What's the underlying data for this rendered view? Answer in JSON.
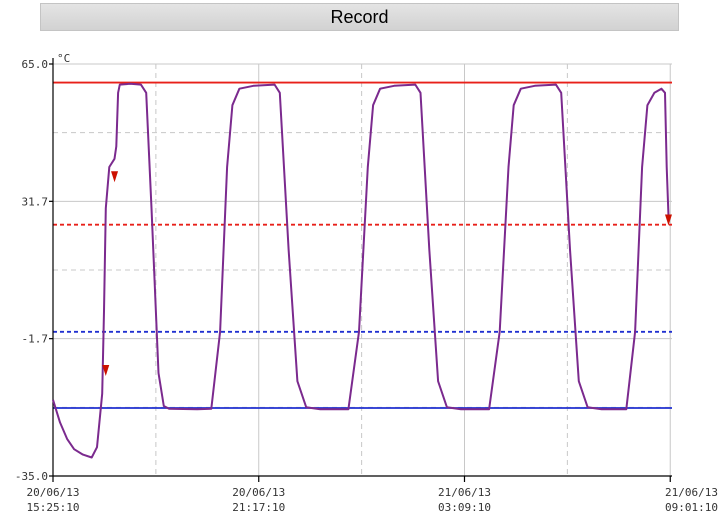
{
  "header": {
    "title": "Record"
  },
  "chart_data": {
    "type": "line",
    "title": "Record",
    "unit": "°C",
    "ylim": [
      -35.0,
      65.0
    ],
    "y_ticks": [
      "65.0",
      "31.7",
      "-1.7",
      "-35.0"
    ],
    "x_ticks": [
      {
        "date": "20/06/13",
        "time": "15:25:10"
      },
      {
        "date": "20/06/13",
        "time": "21:17:10"
      },
      {
        "date": "21/06/13",
        "time": "03:09:10"
      },
      {
        "date": "21/06/13",
        "time": "09:01:10"
      }
    ],
    "xlim_hours": [
      0,
      17.6
    ],
    "grid": true,
    "thresholds": [
      {
        "name": "high-alarm",
        "value": 60.5,
        "style": "solid",
        "color": "#e8201a"
      },
      {
        "name": "high-warning",
        "value": 26.0,
        "style": "dashed",
        "color": "#e8201a"
      },
      {
        "name": "low-warning",
        "value": 0.0,
        "style": "dashed",
        "color": "#2030d0"
      },
      {
        "name": "low-alarm",
        "value": -18.5,
        "style": "solid",
        "color": "#2030d0"
      }
    ],
    "series": [
      {
        "color": "#7b2a8e",
        "points": [
          [
            0.0,
            -16.5
          ],
          [
            0.2,
            -22.0
          ],
          [
            0.4,
            -26.0
          ],
          [
            0.6,
            -28.5
          ],
          [
            0.85,
            -29.8
          ],
          [
            1.1,
            -30.5
          ],
          [
            1.25,
            -28.0
          ],
          [
            1.4,
            -15.0
          ],
          [
            1.45,
            5.0
          ],
          [
            1.5,
            30.0
          ],
          [
            1.6,
            40.0
          ],
          [
            1.75,
            42.0
          ],
          [
            1.8,
            45.0
          ],
          [
            1.85,
            58.0
          ],
          [
            1.9,
            60.0
          ],
          [
            2.2,
            60.2
          ],
          [
            2.5,
            60.0
          ],
          [
            2.65,
            58.0
          ],
          [
            2.8,
            30.0
          ],
          [
            3.0,
            -10.0
          ],
          [
            3.15,
            -18.0
          ],
          [
            3.3,
            -18.7
          ],
          [
            4.1,
            -18.8
          ],
          [
            4.5,
            -18.7
          ],
          [
            4.75,
            0.0
          ],
          [
            4.95,
            40.0
          ],
          [
            5.1,
            55.0
          ],
          [
            5.3,
            59.0
          ],
          [
            5.7,
            59.7
          ],
          [
            6.3,
            60.0
          ],
          [
            6.45,
            58.0
          ],
          [
            6.7,
            20.0
          ],
          [
            6.95,
            -12.0
          ],
          [
            7.2,
            -18.3
          ],
          [
            7.6,
            -18.8
          ],
          [
            8.4,
            -18.8
          ],
          [
            8.7,
            0.0
          ],
          [
            8.95,
            40.0
          ],
          [
            9.1,
            55.0
          ],
          [
            9.3,
            59.0
          ],
          [
            9.7,
            59.7
          ],
          [
            10.3,
            60.0
          ],
          [
            10.45,
            58.0
          ],
          [
            10.7,
            20.0
          ],
          [
            10.95,
            -12.0
          ],
          [
            11.2,
            -18.3
          ],
          [
            11.6,
            -18.8
          ],
          [
            12.4,
            -18.8
          ],
          [
            12.7,
            0.0
          ],
          [
            12.95,
            40.0
          ],
          [
            13.1,
            55.0
          ],
          [
            13.3,
            59.0
          ],
          [
            13.7,
            59.7
          ],
          [
            14.3,
            60.0
          ],
          [
            14.45,
            58.0
          ],
          [
            14.7,
            20.0
          ],
          [
            14.95,
            -12.0
          ],
          [
            15.2,
            -18.3
          ],
          [
            15.6,
            -18.8
          ],
          [
            16.3,
            -18.8
          ],
          [
            16.55,
            0.0
          ],
          [
            16.75,
            40.0
          ],
          [
            16.9,
            55.0
          ],
          [
            17.1,
            58.0
          ],
          [
            17.3,
            59.0
          ],
          [
            17.4,
            58.0
          ],
          [
            17.45,
            40.0
          ],
          [
            17.5,
            28.0
          ]
        ]
      }
    ],
    "markers": [
      {
        "x": 1.75,
        "y": 37.5,
        "shape": "triangle-down",
        "color": "#cc1100"
      },
      {
        "x": 1.5,
        "y": -9.5,
        "shape": "triangle-down",
        "color": "#cc1100"
      },
      {
        "x": 17.5,
        "y": 27.0,
        "shape": "triangle-down",
        "color": "#cc1100"
      }
    ]
  }
}
